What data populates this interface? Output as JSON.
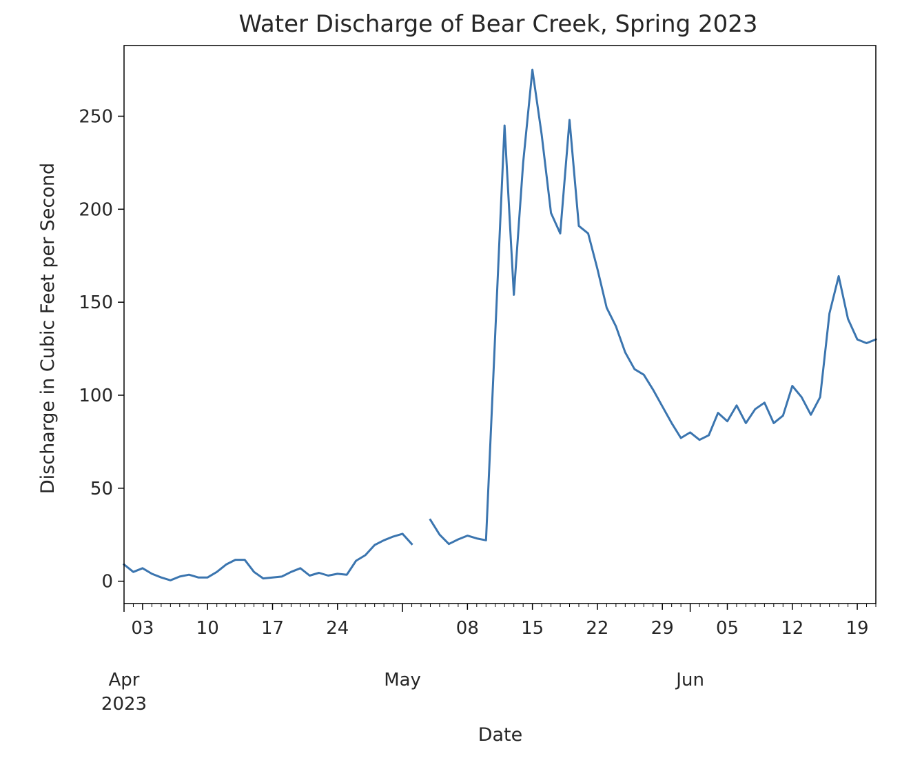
{
  "chart_data": {
    "type": "line",
    "title": "Water Discharge of Bear Creek, Spring 2023",
    "xlabel": "Date",
    "ylabel": "Discharge in Cubic Feet per Second",
    "ylim": [
      -12,
      288
    ],
    "yticks": [
      0,
      50,
      100,
      150,
      200,
      250
    ],
    "xlim": [
      "2023-04-01",
      "2023-06-21"
    ],
    "x_minor_ticks": [
      "03",
      "10",
      "17",
      "24",
      "08",
      "15",
      "22",
      "29",
      "05",
      "12",
      "19"
    ],
    "x_major_ticks": [
      {
        "date": "2023-04-01",
        "label": "Apr",
        "year": "2023"
      },
      {
        "date": "2023-05-01",
        "label": "May",
        "year": ""
      },
      {
        "date": "2023-06-01",
        "label": "Jun",
        "year": ""
      }
    ],
    "x_minor_dates": [
      "2023-04-03",
      "2023-04-10",
      "2023-04-17",
      "2023-04-24",
      "2023-05-08",
      "2023-05-15",
      "2023-05-22",
      "2023-05-29",
      "2023-06-05",
      "2023-06-12",
      "2023-06-19"
    ],
    "grid": false,
    "series_color": "#3b75af",
    "series": [
      {
        "dates": [
          "2023-04-01",
          "2023-04-02",
          "2023-04-03",
          "2023-04-04",
          "2023-04-05",
          "2023-04-06",
          "2023-04-07",
          "2023-04-08",
          "2023-04-09",
          "2023-04-10",
          "2023-04-11",
          "2023-04-12",
          "2023-04-13",
          "2023-04-14",
          "2023-04-15",
          "2023-04-16",
          "2023-04-17",
          "2023-04-18",
          "2023-04-19",
          "2023-04-20",
          "2023-04-21",
          "2023-04-22",
          "2023-04-23",
          "2023-04-24",
          "2023-04-25",
          "2023-04-26",
          "2023-04-27",
          "2023-04-28",
          "2023-04-29",
          "2023-04-30",
          "2023-05-01",
          "2023-05-02"
        ],
        "values": [
          9,
          5,
          7,
          4,
          2,
          0.5,
          2.5,
          3.5,
          2,
          2,
          5,
          9,
          11.5,
          11.5,
          5,
          1.5,
          2,
          2.5,
          5,
          7,
          3,
          4.5,
          3,
          4,
          3.5,
          11,
          14,
          19.5,
          22,
          24,
          25.5,
          20
        ]
      },
      {
        "dates": [
          "2023-05-04",
          "2023-05-05",
          "2023-05-06",
          "2023-05-07",
          "2023-05-08",
          "2023-05-09",
          "2023-05-10",
          "2023-05-11",
          "2023-05-12",
          "2023-05-13",
          "2023-05-14",
          "2023-05-15",
          "2023-05-16",
          "2023-05-17",
          "2023-05-18",
          "2023-05-19",
          "2023-05-20",
          "2023-05-21",
          "2023-05-22",
          "2023-05-23",
          "2023-05-24",
          "2023-05-25",
          "2023-05-26",
          "2023-05-27",
          "2023-05-28",
          "2023-05-29",
          "2023-05-30",
          "2023-05-31",
          "2023-06-01",
          "2023-06-02",
          "2023-06-03",
          "2023-06-04",
          "2023-06-05",
          "2023-06-06",
          "2023-06-07",
          "2023-06-08",
          "2023-06-09",
          "2023-06-10",
          "2023-06-11",
          "2023-06-12",
          "2023-06-13",
          "2023-06-14",
          "2023-06-15",
          "2023-06-16",
          "2023-06-17",
          "2023-06-18",
          "2023-06-19",
          "2023-06-20",
          "2023-06-21"
        ],
        "values": [
          33,
          25,
          20,
          22.5,
          24.5,
          23,
          22,
          134,
          245,
          154,
          225,
          275,
          240,
          198,
          187,
          248,
          191,
          187,
          168,
          147,
          137,
          123,
          114,
          111,
          103,
          94,
          85,
          77,
          80,
          76,
          78.5,
          90.5,
          86,
          94.5,
          85,
          92.5,
          96,
          85,
          89,
          105,
          99,
          89.5,
          99,
          144,
          164,
          141,
          130,
          128,
          130
        ]
      }
    ]
  }
}
